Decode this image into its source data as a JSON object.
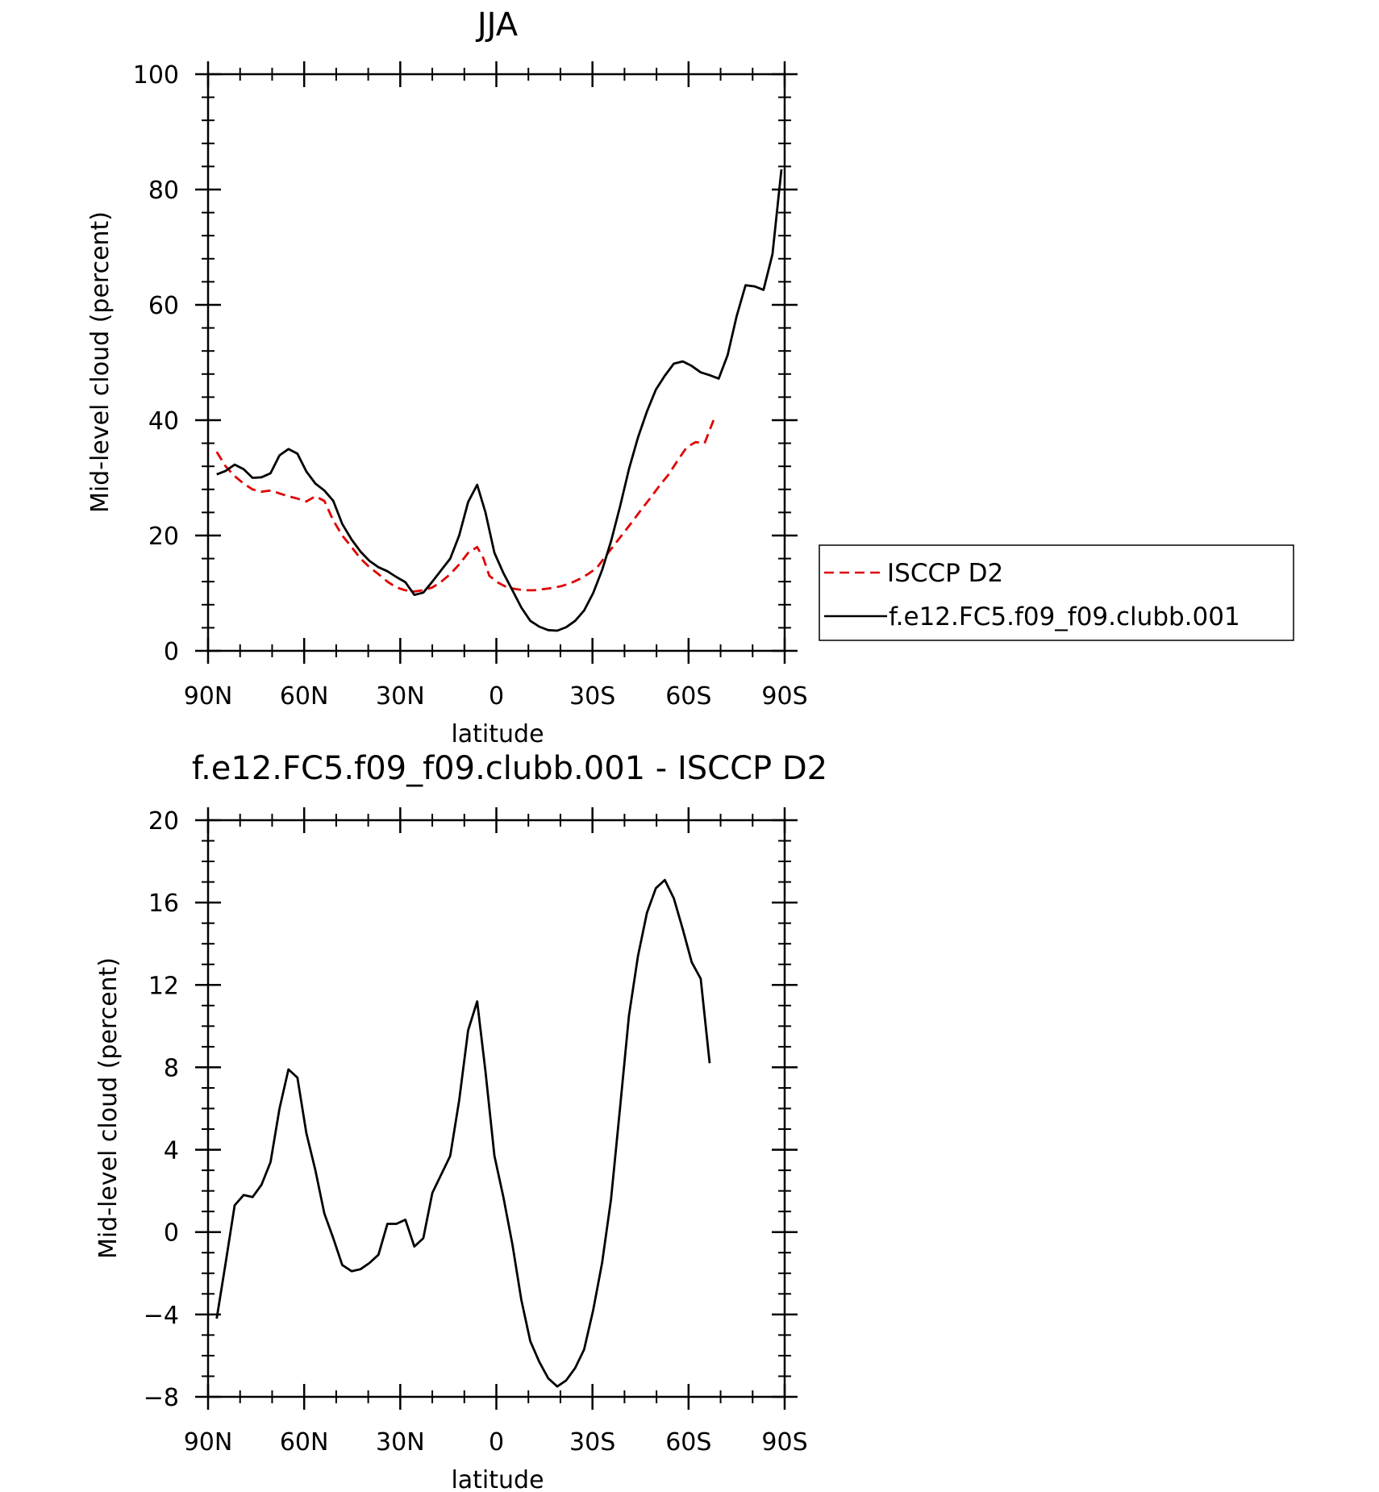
{
  "chart_data": [
    {
      "type": "line",
      "title": "JJA",
      "xlabel": "latitude",
      "ylabel": "Mid-level cloud (percent)",
      "xlim": [
        -90,
        90
      ],
      "ylim": [
        0,
        100
      ],
      "x_ticks": [
        -90,
        -60,
        -30,
        0,
        30,
        60,
        90
      ],
      "x_tick_labels": [
        "90N",
        "60N",
        "30N",
        "0",
        "30S",
        "60S",
        "90S"
      ],
      "y_ticks": [
        0,
        20,
        40,
        60,
        80,
        100
      ],
      "y_tick_labels": [
        "0",
        "20",
        "40",
        "60",
        "80",
        "100"
      ],
      "legend": {
        "placement": "right",
        "entries": [
          "ISCCP D2",
          "f.e12.FC5.f09_f09.clubb.001"
        ]
      },
      "grid": false,
      "series": [
        {
          "name": "ISCCP D2",
          "color": "#e00000",
          "dashed": true,
          "points": [
            [
              -87.3,
              34.5
            ],
            [
              -84.5,
              32
            ],
            [
              -81.7,
              30.3
            ],
            [
              -78.9,
              29
            ],
            [
              -76.1,
              28
            ],
            [
              -73.3,
              27.6
            ],
            [
              -70.5,
              27.8
            ],
            [
              -67.7,
              27.3
            ],
            [
              -64.9,
              26.8
            ],
            [
              -62.1,
              26.4
            ],
            [
              -59.3,
              25.9
            ],
            [
              -56.5,
              26.8
            ],
            [
              -53.7,
              26
            ],
            [
              -50.9,
              22.6
            ],
            [
              -48.1,
              20
            ],
            [
              -45.2,
              18
            ],
            [
              -42.4,
              16
            ],
            [
              -39.6,
              14.5
            ],
            [
              -36.8,
              13.3
            ],
            [
              -34,
              12
            ],
            [
              -31.2,
              11
            ],
            [
              -28.4,
              10.5
            ],
            [
              -25.6,
              10.3
            ],
            [
              -22.8,
              10.5
            ],
            [
              -20,
              11
            ],
            [
              -17.2,
              12
            ],
            [
              -14.4,
              13.3
            ],
            [
              -11.6,
              15
            ],
            [
              -8.8,
              17
            ],
            [
              -6,
              18
            ],
            [
              -4,
              16
            ],
            [
              -2.2,
              13
            ],
            [
              0.6,
              11.8
            ],
            [
              3.4,
              11
            ],
            [
              6.2,
              10.7
            ],
            [
              9,
              10.5
            ],
            [
              11.8,
              10.5
            ],
            [
              14.6,
              10.7
            ],
            [
              17.4,
              10.9
            ],
            [
              20.2,
              11.2
            ],
            [
              23,
              11.7
            ],
            [
              25.8,
              12.4
            ],
            [
              28.6,
              13.3
            ],
            [
              31.4,
              14.4
            ],
            [
              34.2,
              16.5
            ],
            [
              37,
              18.5
            ],
            [
              39.8,
              20.5
            ],
            [
              42.6,
              22.5
            ],
            [
              45.4,
              24.6
            ],
            [
              48.2,
              26.6
            ],
            [
              51,
              28.7
            ],
            [
              53.8,
              30.6
            ],
            [
              56.6,
              33
            ],
            [
              59.4,
              35.3
            ],
            [
              62.2,
              36.2
            ],
            [
              65,
              36
            ],
            [
              67.8,
              40
            ]
          ]
        },
        {
          "name": "f.e12.FC5.f09_f09.clubb.001",
          "color": "#000000",
          "dashed": false,
          "points": [
            [
              -87.3,
              30.6
            ],
            [
              -84.5,
              31.2
            ],
            [
              -81.7,
              32.3
            ],
            [
              -78.9,
              31.5
            ],
            [
              -76.1,
              30
            ],
            [
              -73.3,
              30.1
            ],
            [
              -70.5,
              30.8
            ],
            [
              -67.7,
              33.9
            ],
            [
              -64.9,
              35
            ],
            [
              -62.1,
              34.2
            ],
            [
              -59.3,
              31.1
            ],
            [
              -56.5,
              29
            ],
            [
              -53.7,
              27.8
            ],
            [
              -50.9,
              26
            ],
            [
              -48.1,
              22
            ],
            [
              -45.2,
              19.3
            ],
            [
              -42.4,
              17.2
            ],
            [
              -39.6,
              15.6
            ],
            [
              -36.8,
              14.5
            ],
            [
              -34,
              13.8
            ],
            [
              -31.2,
              12.8
            ],
            [
              -28.4,
              11.9
            ],
            [
              -25.6,
              9.7
            ],
            [
              -22.8,
              10.1
            ],
            [
              -20,
              12
            ],
            [
              -17.2,
              14
            ],
            [
              -14.4,
              16
            ],
            [
              -11.6,
              20
            ],
            [
              -8.8,
              25.8
            ],
            [
              -6,
              28.8
            ],
            [
              -3.4,
              24
            ],
            [
              -0.6,
              17
            ],
            [
              2.2,
              13.5
            ],
            [
              5,
              10.5
            ],
            [
              7.8,
              7.5
            ],
            [
              10.6,
              5.2
            ],
            [
              13.4,
              4.2
            ],
            [
              16.2,
              3.6
            ],
            [
              19,
              3.5
            ],
            [
              21.8,
              4.1
            ],
            [
              24.6,
              5.2
            ],
            [
              27.4,
              7
            ],
            [
              30.2,
              10
            ],
            [
              33,
              14
            ],
            [
              35.8,
              19
            ],
            [
              38.6,
              25
            ],
            [
              41.4,
              31.5
            ],
            [
              44.2,
              37
            ],
            [
              47,
              41.5
            ],
            [
              49.8,
              45.3
            ],
            [
              52.6,
              47.7
            ],
            [
              55.4,
              49.8
            ],
            [
              58.2,
              50.2
            ],
            [
              61,
              49.4
            ],
            [
              63.8,
              48.3
            ],
            [
              66.6,
              47.8
            ],
            [
              69.4,
              47.2
            ],
            [
              72.2,
              51.3
            ],
            [
              75,
              58
            ],
            [
              77.8,
              63.4
            ],
            [
              80.6,
              63.2
            ],
            [
              83.4,
              62.6
            ],
            [
              86.2,
              68.8
            ],
            [
              89,
              83.5
            ]
          ]
        }
      ]
    },
    {
      "type": "line",
      "title": "f.e12.FC5.f09_f09.clubb.001 - ISCCP D2",
      "xlabel": "latitude",
      "ylabel": "Mid-level cloud (percent)",
      "xlim": [
        -90,
        90
      ],
      "ylim": [
        -8,
        20
      ],
      "x_ticks": [
        -90,
        -60,
        -30,
        0,
        30,
        60,
        90
      ],
      "x_tick_labels": [
        "90N",
        "60N",
        "30N",
        "0",
        "30S",
        "60S",
        "90S"
      ],
      "y_ticks": [
        -8,
        -4,
        0,
        4,
        8,
        12,
        16,
        20
      ],
      "y_tick_labels": [
        "−8",
        "−4",
        "0",
        "4",
        "8",
        "12",
        "16",
        "20"
      ],
      "grid": false,
      "series": [
        {
          "color": "#000000",
          "dashed": false,
          "points": [
            [
              -87.3,
              -4.2
            ],
            [
              -84.5,
              -1.5
            ],
            [
              -81.7,
              1.3
            ],
            [
              -78.9,
              1.8
            ],
            [
              -76.1,
              1.7
            ],
            [
              -73.3,
              2.3
            ],
            [
              -70.5,
              3.4
            ],
            [
              -67.7,
              6
            ],
            [
              -64.9,
              7.9
            ],
            [
              -62.1,
              7.5
            ],
            [
              -59.3,
              4.8
            ],
            [
              -56.5,
              3
            ],
            [
              -53.7,
              0.9
            ],
            [
              -50.9,
              -0.3
            ],
            [
              -48.1,
              -1.6
            ],
            [
              -45.2,
              -1.9
            ],
            [
              -42.4,
              -1.8
            ],
            [
              -39.6,
              -1.5
            ],
            [
              -36.8,
              -1.1
            ],
            [
              -34,
              0.4
            ],
            [
              -31.2,
              0.4
            ],
            [
              -28.4,
              0.6
            ],
            [
              -25.6,
              -0.7
            ],
            [
              -22.8,
              -0.3
            ],
            [
              -20,
              1.9
            ],
            [
              -17.2,
              2.8
            ],
            [
              -14.4,
              3.7
            ],
            [
              -11.6,
              6.4
            ],
            [
              -8.8,
              9.8
            ],
            [
              -6,
              11.2
            ],
            [
              -3.4,
              7.8
            ],
            [
              -0.6,
              3.7
            ],
            [
              2.2,
              1.7
            ],
            [
              5,
              -0.6
            ],
            [
              7.8,
              -3.3
            ],
            [
              10.6,
              -5.3
            ],
            [
              13.4,
              -6.3
            ],
            [
              16.2,
              -7.1
            ],
            [
              19,
              -7.5
            ],
            [
              21.8,
              -7.2
            ],
            [
              24.6,
              -6.6
            ],
            [
              27.4,
              -5.7
            ],
            [
              30.2,
              -3.8
            ],
            [
              33,
              -1.5
            ],
            [
              35.8,
              1.6
            ],
            [
              38.6,
              6
            ],
            [
              41.4,
              10.5
            ],
            [
              44.2,
              13.4
            ],
            [
              47,
              15.5
            ],
            [
              49.8,
              16.7
            ],
            [
              52.6,
              17.1
            ],
            [
              55.4,
              16.2
            ],
            [
              58.2,
              14.7
            ],
            [
              61,
              13.1
            ],
            [
              63.8,
              12.3
            ],
            [
              66.6,
              8.2
            ]
          ]
        }
      ]
    }
  ]
}
